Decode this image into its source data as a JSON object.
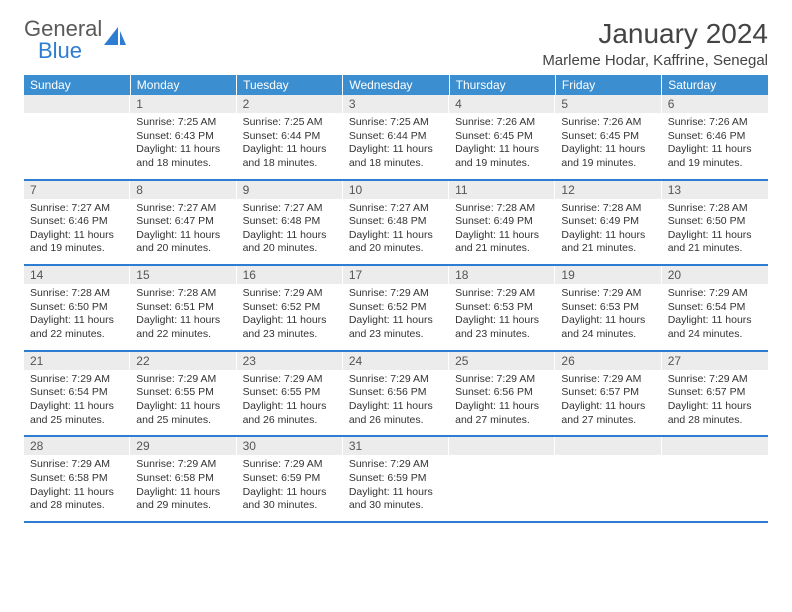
{
  "logo": {
    "word1": "General",
    "word2": "Blue"
  },
  "title": "January 2024",
  "location": "Marleme Hodar, Kaffrine, Senegal",
  "colors": {
    "header_bg": "#3b8ed0",
    "header_text": "#ffffff",
    "daynum_bg": "#ececec",
    "week_divider": "#2d7dd2",
    "logo_gray": "#5a5a5a",
    "logo_blue": "#2d7dd2",
    "body_text": "#333333"
  },
  "day_headers": [
    "Sunday",
    "Monday",
    "Tuesday",
    "Wednesday",
    "Thursday",
    "Friday",
    "Saturday"
  ],
  "weeks": [
    [
      {
        "n": "",
        "sr": "",
        "ss": "",
        "dl": ""
      },
      {
        "n": "1",
        "sr": "Sunrise: 7:25 AM",
        "ss": "Sunset: 6:43 PM",
        "dl": "Daylight: 11 hours and 18 minutes."
      },
      {
        "n": "2",
        "sr": "Sunrise: 7:25 AM",
        "ss": "Sunset: 6:44 PM",
        "dl": "Daylight: 11 hours and 18 minutes."
      },
      {
        "n": "3",
        "sr": "Sunrise: 7:25 AM",
        "ss": "Sunset: 6:44 PM",
        "dl": "Daylight: 11 hours and 18 minutes."
      },
      {
        "n": "4",
        "sr": "Sunrise: 7:26 AM",
        "ss": "Sunset: 6:45 PM",
        "dl": "Daylight: 11 hours and 19 minutes."
      },
      {
        "n": "5",
        "sr": "Sunrise: 7:26 AM",
        "ss": "Sunset: 6:45 PM",
        "dl": "Daylight: 11 hours and 19 minutes."
      },
      {
        "n": "6",
        "sr": "Sunrise: 7:26 AM",
        "ss": "Sunset: 6:46 PM",
        "dl": "Daylight: 11 hours and 19 minutes."
      }
    ],
    [
      {
        "n": "7",
        "sr": "Sunrise: 7:27 AM",
        "ss": "Sunset: 6:46 PM",
        "dl": "Daylight: 11 hours and 19 minutes."
      },
      {
        "n": "8",
        "sr": "Sunrise: 7:27 AM",
        "ss": "Sunset: 6:47 PM",
        "dl": "Daylight: 11 hours and 20 minutes."
      },
      {
        "n": "9",
        "sr": "Sunrise: 7:27 AM",
        "ss": "Sunset: 6:48 PM",
        "dl": "Daylight: 11 hours and 20 minutes."
      },
      {
        "n": "10",
        "sr": "Sunrise: 7:27 AM",
        "ss": "Sunset: 6:48 PM",
        "dl": "Daylight: 11 hours and 20 minutes."
      },
      {
        "n": "11",
        "sr": "Sunrise: 7:28 AM",
        "ss": "Sunset: 6:49 PM",
        "dl": "Daylight: 11 hours and 21 minutes."
      },
      {
        "n": "12",
        "sr": "Sunrise: 7:28 AM",
        "ss": "Sunset: 6:49 PM",
        "dl": "Daylight: 11 hours and 21 minutes."
      },
      {
        "n": "13",
        "sr": "Sunrise: 7:28 AM",
        "ss": "Sunset: 6:50 PM",
        "dl": "Daylight: 11 hours and 21 minutes."
      }
    ],
    [
      {
        "n": "14",
        "sr": "Sunrise: 7:28 AM",
        "ss": "Sunset: 6:50 PM",
        "dl": "Daylight: 11 hours and 22 minutes."
      },
      {
        "n": "15",
        "sr": "Sunrise: 7:28 AM",
        "ss": "Sunset: 6:51 PM",
        "dl": "Daylight: 11 hours and 22 minutes."
      },
      {
        "n": "16",
        "sr": "Sunrise: 7:29 AM",
        "ss": "Sunset: 6:52 PM",
        "dl": "Daylight: 11 hours and 23 minutes."
      },
      {
        "n": "17",
        "sr": "Sunrise: 7:29 AM",
        "ss": "Sunset: 6:52 PM",
        "dl": "Daylight: 11 hours and 23 minutes."
      },
      {
        "n": "18",
        "sr": "Sunrise: 7:29 AM",
        "ss": "Sunset: 6:53 PM",
        "dl": "Daylight: 11 hours and 23 minutes."
      },
      {
        "n": "19",
        "sr": "Sunrise: 7:29 AM",
        "ss": "Sunset: 6:53 PM",
        "dl": "Daylight: 11 hours and 24 minutes."
      },
      {
        "n": "20",
        "sr": "Sunrise: 7:29 AM",
        "ss": "Sunset: 6:54 PM",
        "dl": "Daylight: 11 hours and 24 minutes."
      }
    ],
    [
      {
        "n": "21",
        "sr": "Sunrise: 7:29 AM",
        "ss": "Sunset: 6:54 PM",
        "dl": "Daylight: 11 hours and 25 minutes."
      },
      {
        "n": "22",
        "sr": "Sunrise: 7:29 AM",
        "ss": "Sunset: 6:55 PM",
        "dl": "Daylight: 11 hours and 25 minutes."
      },
      {
        "n": "23",
        "sr": "Sunrise: 7:29 AM",
        "ss": "Sunset: 6:55 PM",
        "dl": "Daylight: 11 hours and 26 minutes."
      },
      {
        "n": "24",
        "sr": "Sunrise: 7:29 AM",
        "ss": "Sunset: 6:56 PM",
        "dl": "Daylight: 11 hours and 26 minutes."
      },
      {
        "n": "25",
        "sr": "Sunrise: 7:29 AM",
        "ss": "Sunset: 6:56 PM",
        "dl": "Daylight: 11 hours and 27 minutes."
      },
      {
        "n": "26",
        "sr": "Sunrise: 7:29 AM",
        "ss": "Sunset: 6:57 PM",
        "dl": "Daylight: 11 hours and 27 minutes."
      },
      {
        "n": "27",
        "sr": "Sunrise: 7:29 AM",
        "ss": "Sunset: 6:57 PM",
        "dl": "Daylight: 11 hours and 28 minutes."
      }
    ],
    [
      {
        "n": "28",
        "sr": "Sunrise: 7:29 AM",
        "ss": "Sunset: 6:58 PM",
        "dl": "Daylight: 11 hours and 28 minutes."
      },
      {
        "n": "29",
        "sr": "Sunrise: 7:29 AM",
        "ss": "Sunset: 6:58 PM",
        "dl": "Daylight: 11 hours and 29 minutes."
      },
      {
        "n": "30",
        "sr": "Sunrise: 7:29 AM",
        "ss": "Sunset: 6:59 PM",
        "dl": "Daylight: 11 hours and 30 minutes."
      },
      {
        "n": "31",
        "sr": "Sunrise: 7:29 AM",
        "ss": "Sunset: 6:59 PM",
        "dl": "Daylight: 11 hours and 30 minutes."
      },
      {
        "n": "",
        "sr": "",
        "ss": "",
        "dl": ""
      },
      {
        "n": "",
        "sr": "",
        "ss": "",
        "dl": ""
      },
      {
        "n": "",
        "sr": "",
        "ss": "",
        "dl": ""
      }
    ]
  ]
}
